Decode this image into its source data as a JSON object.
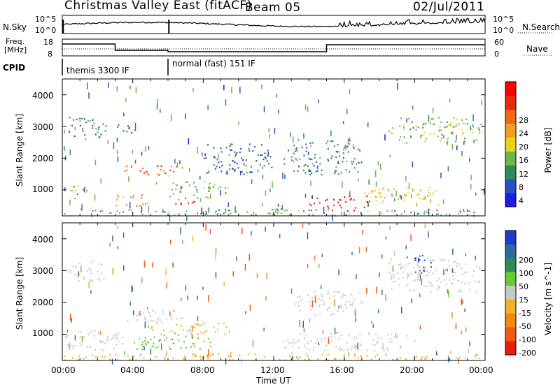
{
  "header": {
    "station": "Christmas Valley East (fitACF)",
    "beam": "Beam 05",
    "date": "02/Jul/2011"
  },
  "panels": {
    "noise": {
      "left_label": "N.Sky",
      "left_ticks": [
        "10^5",
        "10^0"
      ],
      "right_ticks": [
        "10^5",
        "10^0"
      ],
      "right_label": "N.Search"
    },
    "freq": {
      "left_label_1": "Freq.",
      "left_label_2": "[MHz]",
      "left_ticks": [
        "18",
        "8"
      ],
      "right_ticks": [
        "60",
        "0"
      ],
      "right_label": "Nave"
    },
    "cpid": {
      "label": "CPID",
      "modes": [
        "themis 3300 IF",
        "normal (fast) 151 IF"
      ]
    }
  },
  "axes": {
    "y_label": "Slant Range [km]",
    "x_label": "Time UT",
    "x_ticks": [
      "00:00",
      "04:00",
      "08:00",
      "12:00",
      "16:00",
      "20:00",
      "00:00"
    ],
    "y_ticks": [
      "1000",
      "2000",
      "3000",
      "4000"
    ]
  },
  "colorbars": {
    "power": {
      "label": "Power [dB]",
      "ticks": [
        "4",
        "8",
        "12",
        "16",
        "20",
        "24",
        "28"
      ],
      "colors": [
        "#1e1ee6",
        "#2a52be",
        "#2e8b57",
        "#6fb44a",
        "#e8d21e",
        "#f0a01e",
        "#ef6a14",
        "#e52a10",
        "#ff0000"
      ]
    },
    "velocity": {
      "label": "Velocity [m s^-1]",
      "ticks": [
        "200",
        "100",
        "50",
        "15",
        "-15",
        "-50",
        "-100",
        "-200"
      ],
      "colors": [
        "#1e3cc8",
        "#2e6aa0",
        "#2e8b57",
        "#66cc33",
        "#c8c8c8",
        "#f0b428",
        "#f08a14",
        "#ec5a14",
        "#e61e0a"
      ]
    }
  },
  "chart_data": [
    {
      "type": "heatmap",
      "name": "power",
      "xlabel": "Time UT",
      "ylabel": "Slant Range [km]",
      "xlim": [
        0,
        24
      ],
      "ylim": [
        180,
        4500
      ],
      "colorbar_label": "Power [dB]",
      "clim": [
        0,
        30
      ],
      "regions": [
        {
          "t": [
            0.3,
            2.5
          ],
          "r": [
            2600,
            3350
          ],
          "value": 8
        },
        {
          "t": [
            0.3,
            1.5
          ],
          "r": [
            700,
            1150
          ],
          "value": 12
        },
        {
          "t": [
            3.0,
            4.2
          ],
          "r": [
            2800,
            3200
          ],
          "value": 6
        },
        {
          "t": [
            3.5,
            7.0
          ],
          "r": [
            1450,
            1800
          ],
          "value": 22
        },
        {
          "t": [
            3.0,
            5.0
          ],
          "r": [
            500,
            900
          ],
          "value": 20
        },
        {
          "t": [
            6.0,
            7.5
          ],
          "r": [
            550,
            800
          ],
          "value": 26
        },
        {
          "t": [
            6.0,
            9.5
          ],
          "r": [
            750,
            1300
          ],
          "value": 12
        },
        {
          "t": [
            8.0,
            12.0
          ],
          "r": [
            1500,
            2500
          ],
          "value": 6
        },
        {
          "t": [
            12.5,
            17.0
          ],
          "r": [
            1500,
            2600
          ],
          "value": 8
        },
        {
          "t": [
            14.0,
            17.5
          ],
          "r": [
            350,
            850
          ],
          "value": 27
        },
        {
          "t": [
            17.0,
            21.5
          ],
          "r": [
            550,
            1100
          ],
          "value": 16
        },
        {
          "t": [
            18.5,
            24.0
          ],
          "r": [
            2500,
            3300
          ],
          "value": 12
        },
        {
          "t": [
            0.0,
            24.0
          ],
          "r": [
            200,
            420
          ],
          "value": 10
        }
      ]
    },
    {
      "type": "heatmap",
      "name": "velocity",
      "xlabel": "Time UT",
      "ylabel": "Slant Range [km]",
      "xlim": [
        0,
        24
      ],
      "ylim": [
        180,
        4500
      ],
      "colorbar_label": "Velocity [m s^-1]",
      "clim": [
        -250,
        250
      ],
      "regions": [
        {
          "t": [
            0.3,
            2.5
          ],
          "r": [
            2600,
            3350
          ],
          "value": 0
        },
        {
          "t": [
            0.0,
            3.5
          ],
          "r": [
            500,
            1150
          ],
          "value": 0
        },
        {
          "t": [
            3.5,
            7.0
          ],
          "r": [
            1400,
            1800
          ],
          "value": 0
        },
        {
          "t": [
            4.0,
            9.0
          ],
          "r": [
            550,
            1000
          ],
          "value": 40
        },
        {
          "t": [
            5.0,
            9.5
          ],
          "r": [
            1000,
            1400
          ],
          "value": -40
        },
        {
          "t": [
            12.5,
            20.0
          ],
          "r": [
            500,
            1100
          ],
          "value": 0
        },
        {
          "t": [
            13.0,
            17.0
          ],
          "r": [
            1600,
            2400
          ],
          "value": 0
        },
        {
          "t": [
            18.5,
            24.0
          ],
          "r": [
            2300,
            3400
          ],
          "value": 0
        },
        {
          "t": [
            19.5,
            21.0
          ],
          "r": [
            2900,
            3500
          ],
          "value": 200
        },
        {
          "t": [
            0.0,
            24.0
          ],
          "r": [
            200,
            420
          ],
          "value": -40
        }
      ]
    }
  ]
}
